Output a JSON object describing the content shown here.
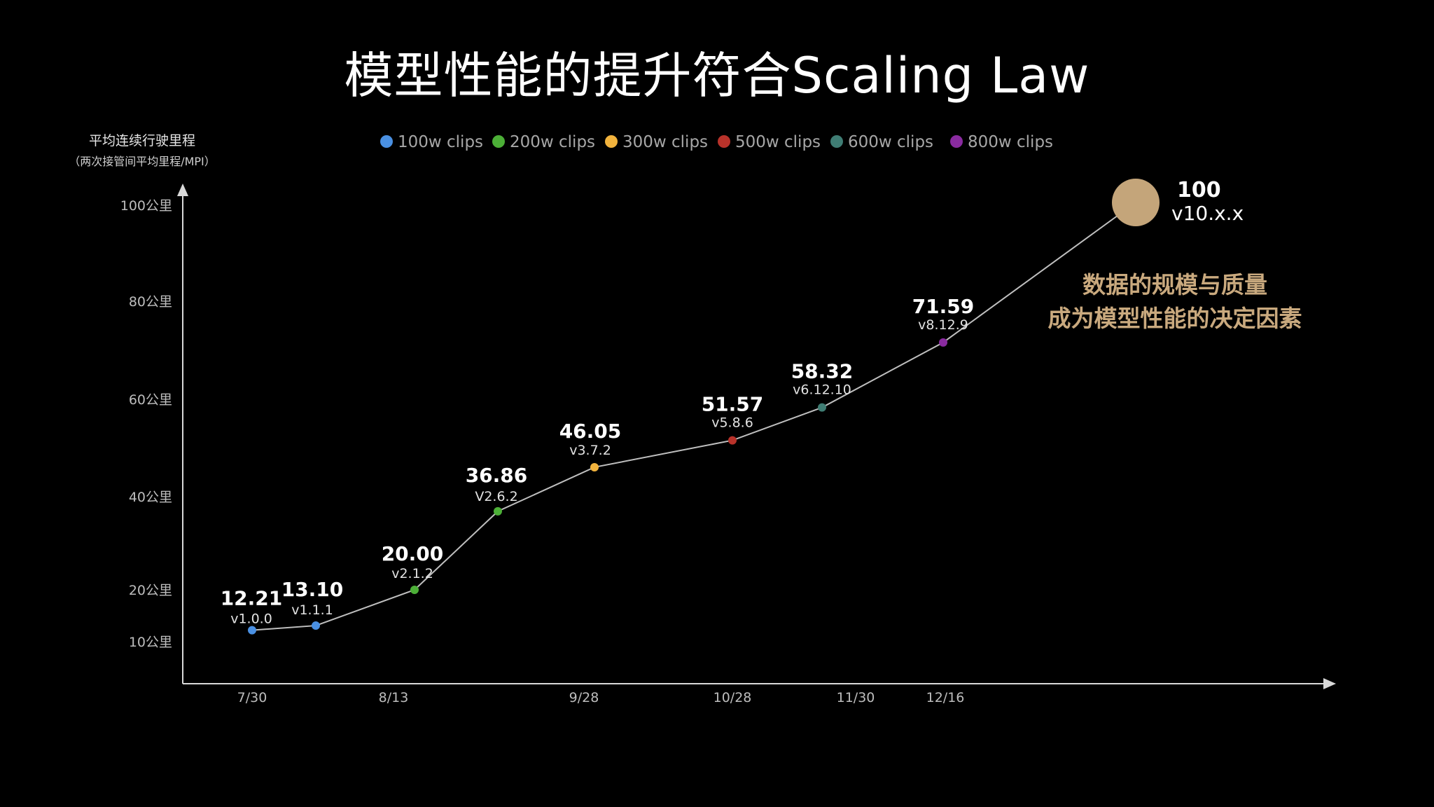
{
  "title": "模型性能的提升符合Scaling Law",
  "colors": {
    "background": "#000000",
    "line": "#bfbfbf",
    "axis": "#d9d9d9",
    "annotation": "#c9a97e",
    "final_point": "#c4a57a"
  },
  "chart_data": {
    "type": "line",
    "ylabel": "平均连续行驶里程",
    "ylabel_sub": "（两次接管间平均里程/MPI）",
    "y_ticks": [
      {
        "value": 10,
        "label": "10公里"
      },
      {
        "value": 20,
        "label": "20公里"
      },
      {
        "value": 40,
        "label": "40公里"
      },
      {
        "value": 60,
        "label": "60公里"
      },
      {
        "value": 80,
        "label": "80公里"
      },
      {
        "value": 100,
        "label": "100公里"
      }
    ],
    "x_ticks": [
      "7/30",
      "8/13",
      "9/28",
      "10/28",
      "11/30",
      "12/16"
    ],
    "legend": [
      {
        "name": "100w clips",
        "color": "#4a90e2"
      },
      {
        "name": "200w clips",
        "color": "#4caf37"
      },
      {
        "name": "300w clips",
        "color": "#f2b33d"
      },
      {
        "name": "500w clips",
        "color": "#b8322a"
      },
      {
        "name": "600w clips",
        "color": "#3f7d74"
      },
      {
        "name": "800w clips",
        "color": "#8a2ba0"
      }
    ],
    "points": [
      {
        "x": "7/30",
        "value": 12.21,
        "label": "12.21",
        "version": "v1.0.0",
        "clips": "100w clips"
      },
      {
        "x": "",
        "value": 13.1,
        "label": "13.10",
        "version": "v1.1.1",
        "clips": "100w clips"
      },
      {
        "x": "8/13",
        "value": 20.0,
        "label": "20.00",
        "version": "v2.1.2",
        "clips": "200w clips"
      },
      {
        "x": "",
        "value": 36.86,
        "label": "36.86",
        "version": "V2.6.2",
        "clips": "200w clips"
      },
      {
        "x": "9/28",
        "value": 46.05,
        "label": "46.05",
        "version": "v3.7.2",
        "clips": "300w clips"
      },
      {
        "x": "10/28",
        "value": 51.57,
        "label": "51.57",
        "version": "v5.8.6",
        "clips": "500w clips"
      },
      {
        "x": "11/30",
        "value": 58.32,
        "label": "58.32",
        "version": "v6.12.10",
        "clips": "600w clips"
      },
      {
        "x": "12/16",
        "value": 71.59,
        "label": "71.59",
        "version": "v8.12.9",
        "clips": "800w clips"
      }
    ],
    "target": {
      "value": 100,
      "label": "100",
      "version": "v10.x.x"
    },
    "annotation": [
      "数据的规模与质量",
      "成为模型性能的决定因素"
    ]
  }
}
